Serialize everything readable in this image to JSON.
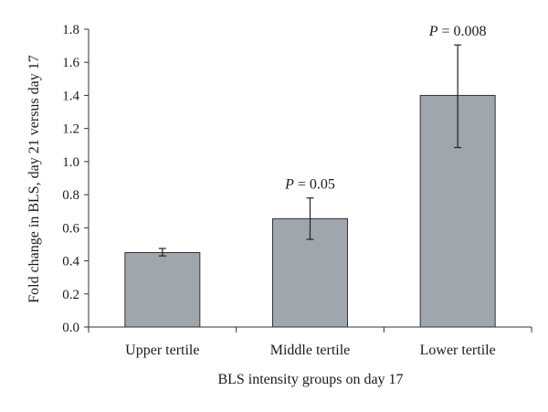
{
  "chart_data": {
    "type": "bar",
    "title": "",
    "xlabel": "BLS intensity groups on day 17",
    "ylabel": "Fold change in BLS, day 21 versus day 17",
    "ylim": [
      0,
      1.8
    ],
    "yticks": [
      "0.0",
      "0.2",
      "0.4",
      "0.6",
      "0.8",
      "1.0",
      "1.2",
      "1.4",
      "1.6",
      "1.8"
    ],
    "grid": false,
    "categories": [
      "Upper tertile",
      "Middle tertile",
      "Lower tertile"
    ],
    "values": [
      0.45,
      0.655,
      1.4
    ],
    "error_low": [
      0.43,
      0.53,
      1.085
    ],
    "error_high": [
      0.475,
      0.78,
      1.705
    ],
    "annotations": [
      "",
      "P = 0.05",
      "P = 0.008"
    ],
    "colors": {
      "bar_fill": "#a0a6ae",
      "bar_stroke": "#333333",
      "axis": "#333333"
    }
  }
}
